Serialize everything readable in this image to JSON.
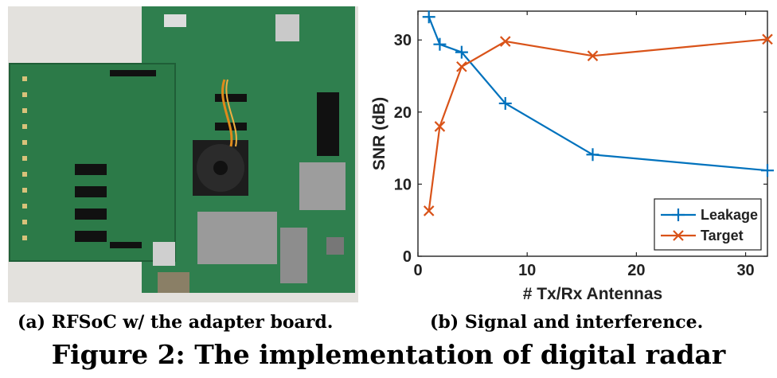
{
  "captions": {
    "a": "(a)  RFSoC w/ the adapter board.",
    "b": "(b)  Signal and interference.",
    "figure": "Figure 2: The implementation of digital radar"
  },
  "colors": {
    "leakage": "#0072BD",
    "target": "#D95319",
    "pcb_green": "#2f7f4e",
    "pcb_dark": "#236a3e"
  },
  "chart_data": {
    "type": "line",
    "xlabel": "# Tx/Rx Antennas",
    "ylabel": "SNR (dB)",
    "xlim": [
      0,
      32
    ],
    "ylim": [
      0,
      34
    ],
    "xticks": [
      0,
      10,
      20,
      30
    ],
    "yticks": [
      0,
      10,
      20,
      30
    ],
    "grid": false,
    "legend_position": "bottom-right",
    "series": [
      {
        "name": "Leakage",
        "marker": "plus",
        "color": "#0072BD",
        "x": [
          1,
          2,
          4,
          8,
          16,
          32
        ],
        "y": [
          33.2,
          29.4,
          28.3,
          21.2,
          14.1,
          11.9
        ]
      },
      {
        "name": "Target",
        "marker": "cross",
        "color": "#D95319",
        "x": [
          1,
          2,
          4,
          8,
          16,
          32
        ],
        "y": [
          6.3,
          18.0,
          26.3,
          29.8,
          27.8,
          30.1
        ]
      }
    ]
  }
}
